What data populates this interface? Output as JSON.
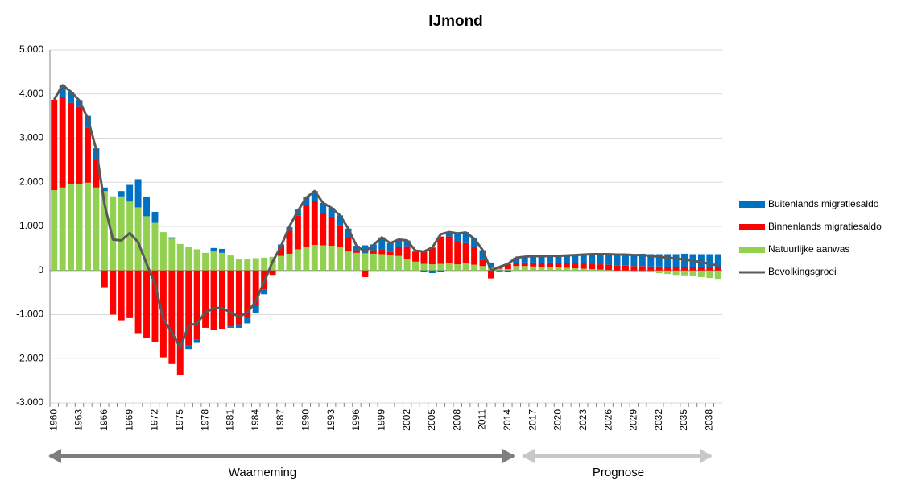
{
  "chart_data": {
    "type": "stacked_bar_line",
    "title": "IJmond",
    "categories": [
      "1960",
      null,
      null,
      "1963",
      null,
      null,
      "1966",
      null,
      null,
      "1969",
      null,
      null,
      "1972",
      null,
      null,
      "1975",
      null,
      null,
      "1978",
      null,
      null,
      "1981",
      null,
      null,
      "1984",
      null,
      null,
      "1987",
      null,
      null,
      "1990",
      null,
      null,
      "1993",
      null,
      null,
      "1996",
      null,
      null,
      "1999",
      null,
      null,
      "2002",
      null,
      null,
      "2005",
      null,
      null,
      "2008",
      null,
      null,
      "2011",
      null,
      null,
      "2014",
      null,
      null,
      "2017",
      null,
      null,
      "2020",
      null,
      null,
      "2023",
      null,
      null,
      "2026",
      null,
      null,
      "2029",
      null,
      null,
      "2032",
      null,
      null,
      "2035",
      null,
      null,
      "2038",
      null
    ],
    "ylim": [
      -3000,
      5000
    ],
    "yticks": [
      {
        "value": -3000,
        "label": "-3.000"
      },
      {
        "value": -2000,
        "label": "-2.000"
      },
      {
        "value": -1000,
        "label": "-1.000"
      },
      0,
      {
        "value": 1000,
        "label": "1.000"
      },
      {
        "value": 2000,
        "label": "2.000"
      },
      {
        "value": 3000,
        "label": "3.000"
      },
      {
        "value": 4000,
        "label": "4.000"
      },
      {
        "value": 5000,
        "label": "5.000"
      }
    ],
    "grid": true,
    "series": [
      {
        "name": "Buitenlands migratiesaldo",
        "type": "bar",
        "color": "#0070c0",
        "values": [
          0,
          280,
          250,
          150,
          270,
          270,
          80,
          0,
          120,
          380,
          640,
          430,
          250,
          0,
          30,
          0,
          -80,
          -70,
          0,
          80,
          90,
          -30,
          -80,
          -150,
          -170,
          -110,
          0,
          60,
          80,
          130,
          190,
          220,
          220,
          200,
          230,
          210,
          100,
          180,
          130,
          280,
          200,
          170,
          130,
          30,
          -30,
          -60,
          -30,
          80,
          200,
          250,
          200,
          220,
          120,
          -20,
          -40,
          130,
          130,
          150,
          150,
          150,
          160,
          170,
          180,
          200,
          220,
          230,
          240,
          250,
          260,
          270,
          280,
          280,
          280,
          290,
          290,
          300,
          300,
          300,
          300,
          300
        ]
      },
      {
        "name": "Binnenlands migratiesaldo",
        "type": "bar",
        "color": "#ff0000",
        "values": [
          2050,
          2050,
          1850,
          1750,
          1250,
          620,
          -380,
          -1000,
          -1130,
          -1080,
          -1420,
          -1520,
          -1620,
          -1970,
          -2120,
          -2370,
          -1700,
          -1570,
          -1300,
          -1350,
          -1320,
          -1270,
          -1220,
          -1050,
          -800,
          -430,
          -100,
          200,
          520,
          770,
          950,
          1000,
          740,
          660,
          490,
          310,
          60,
          -150,
          80,
          100,
          70,
          200,
          300,
          220,
          300,
          380,
          620,
          600,
          500,
          450,
          400,
          140,
          -180,
          50,
          120,
          60,
          80,
          90,
          90,
          100,
          100,
          110,
          120,
          120,
          120,
          120,
          120,
          110,
          110,
          100,
          100,
          90,
          90,
          80,
          80,
          80,
          70,
          70,
          70,
          70
        ]
      },
      {
        "name": "Natuurlijke aanwas",
        "type": "bar",
        "color": "#92d050",
        "values": [
          1820,
          1880,
          1950,
          1960,
          1990,
          1880,
          1800,
          1680,
          1680,
          1560,
          1430,
          1230,
          1080,
          870,
          720,
          600,
          530,
          480,
          400,
          430,
          400,
          340,
          250,
          250,
          280,
          290,
          310,
          330,
          380,
          480,
          530,
          580,
          570,
          560,
          530,
          430,
          400,
          390,
          380,
          370,
          350,
          330,
          250,
          200,
          150,
          140,
          150,
          170,
          140,
          170,
          130,
          100,
          60,
          40,
          30,
          100,
          100,
          90,
          80,
          80,
          70,
          60,
          50,
          40,
          30,
          20,
          10,
          0,
          -10,
          -20,
          -30,
          -40,
          -60,
          -80,
          -100,
          -110,
          -130,
          -150,
          -170,
          -190
        ]
      },
      {
        "name": "Bevolkingsgroei",
        "type": "line",
        "color": "#595959",
        "values": [
          3870,
          4200,
          4050,
          3850,
          3450,
          2750,
          1500,
          700,
          680,
          850,
          640,
          150,
          -300,
          -1100,
          -1400,
          -1750,
          -1250,
          -1200,
          -950,
          -850,
          -850,
          -950,
          -1050,
          -950,
          -700,
          -250,
          200,
          550,
          1000,
          1350,
          1650,
          1800,
          1530,
          1420,
          1250,
          950,
          550,
          430,
          580,
          750,
          620,
          700,
          680,
          450,
          430,
          520,
          820,
          870,
          840,
          860,
          720,
          460,
          0,
          80,
          150,
          290,
          310,
          330,
          320,
          330,
          330,
          340,
          350,
          360,
          370,
          370,
          370,
          360,
          360,
          350,
          350,
          330,
          310,
          290,
          270,
          250,
          220,
          190,
          150,
          110
        ]
      }
    ],
    "annotations": [
      "Waarneming",
      "Prognose"
    ]
  }
}
